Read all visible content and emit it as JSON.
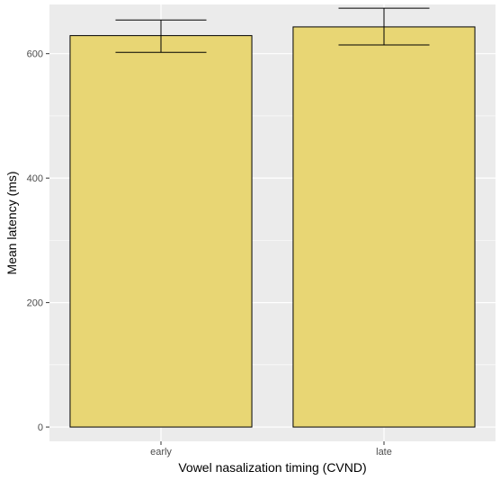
{
  "chart_data": {
    "type": "bar",
    "categories": [
      "early",
      "late"
    ],
    "values": [
      629,
      643
    ],
    "error_low": [
      602,
      614
    ],
    "error_high": [
      654,
      673
    ],
    "xlabel": "Vowel nasalization timing (CVND)",
    "ylabel": "Mean latency (ms)",
    "ylim": [
      -23,
      679
    ],
    "yticks": [
      0,
      200,
      400,
      600
    ],
    "grid": true,
    "colors": {
      "panel": "#ebebeb",
      "grid_major": "#ffffff",
      "bar_fill": "#e8d674",
      "bar_stroke": "#000000",
      "error_bar": "#000000",
      "tick_text": "#4d4d4d"
    }
  }
}
